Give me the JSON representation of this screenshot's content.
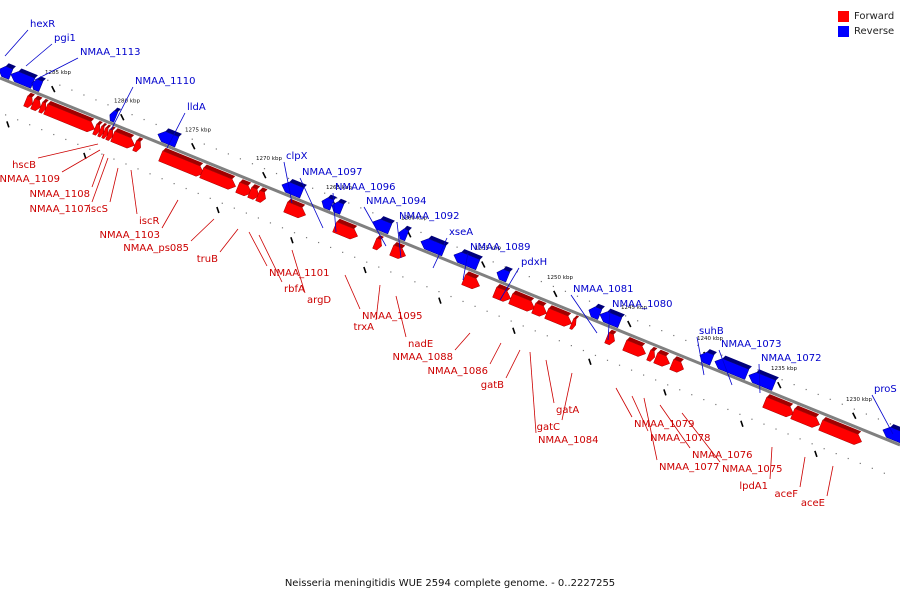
{
  "colors": {
    "forward": "#ff0000",
    "reverse": "#0000ff",
    "forward_label": "#cc0000",
    "reverse_label": "#0000cc",
    "backbone": "#808080"
  },
  "legend": [
    {
      "label": "Forward",
      "color": "#ff0000"
    },
    {
      "label": "Reverse",
      "color": "#0000ff"
    }
  ],
  "caption": "Neisseria meningitidis WUE 2594 complete genome. - 0..2227255",
  "scale_labels": [
    "1285 kbp",
    "1280 kbp",
    "1275 kbp",
    "1270 kbp",
    "1265 kbp",
    "1260 kbp",
    "1255 kbp",
    "1250 kbp",
    "1245 kbp",
    "1240 kbp",
    "1235 kbp",
    "1230 kbp"
  ],
  "reverse_genes": [
    "hexR",
    "pgi1",
    "NMAA_1113",
    "NMAA_1110",
    "lldA",
    "clpX",
    "NMAA_1097",
    "NMAA_1096",
    "NMAA_1094",
    "NMAA_1092",
    "xseA",
    "NMAA_1089",
    "pdxH",
    "NMAA_1081",
    "NMAA_1080",
    "suhB",
    "NMAA_1073",
    "NMAA_1072",
    "proS"
  ],
  "forward_genes": [
    "hscB",
    "NMAA_1109",
    "NMAA_1108",
    "NMAA_1107",
    "iscS",
    "iscR",
    "NMAA_1103",
    "NMAA_ps085",
    "truB",
    "NMAA_1101",
    "rbfA",
    "argD",
    "NMAA_1095",
    "trxA",
    "nadE",
    "NMAA_1088",
    "NMAA_1086",
    "gatB",
    "NMAA_1084",
    "gatA",
    "gatC",
    "NMAA_1079",
    "NMAA_1078",
    "NMAA_1077",
    "NMAA_1076",
    "NMAA_1075",
    "lpdA1",
    "aceF",
    "aceE"
  ]
}
